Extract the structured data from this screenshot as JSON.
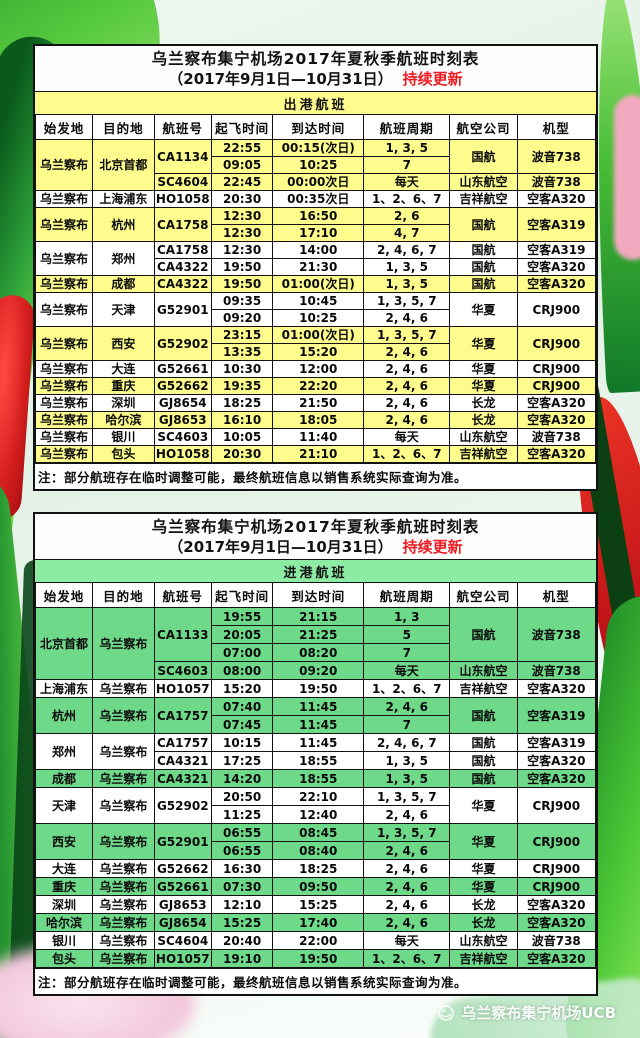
{
  "page": {
    "watermark_text": "乌兰察布集宁机场UCB"
  },
  "tables": [
    {
      "id": "departures",
      "title_line1": "乌兰察布集宁机场2017年夏秋季航班时刻表",
      "title_line2": "（2017年9月1日—10月31日）",
      "title_badge": "持续更新",
      "section": "出港航班",
      "columns": [
        "始发地",
        "目的地",
        "航班号",
        "起飞时间",
        "到达时间",
        "航班周期",
        "航空公司",
        "机型"
      ],
      "note": "注：部分航班存在临时调整可能，最终航班信息以销售系统实际查询为准。",
      "colors": {
        "row": "#fdfc8d",
        "band": "#fdfc8d",
        "badge": "#ee1b24"
      },
      "groups": [
        {
          "origin": "乌兰察布",
          "dest": "北京首都",
          "flights": [
            {
              "no": "CA1134",
              "airline": "国航",
              "aircraft": "波音738",
              "slots": [
                {
                  "dep": "22:55",
                  "arr": "00:15(次日)",
                  "days": "1, 3, 5"
                },
                {
                  "dep": "09:05",
                  "arr": "10:25",
                  "days": "7"
                }
              ]
            },
            {
              "no": "SC4604",
              "airline": "山东航空",
              "aircraft": "波音738",
              "slots": [
                {
                  "dep": "22:45",
                  "arr": "00:00次日",
                  "days": "每天"
                }
              ]
            }
          ]
        },
        {
          "origin": "乌兰察布",
          "dest": "上海浦东",
          "flights": [
            {
              "no": "HO1058",
              "airline": "吉祥航空",
              "aircraft": "空客A320",
              "slots": [
                {
                  "dep": "20:30",
                  "arr": "00:35次日",
                  "days": "1、2、6、7"
                }
              ]
            }
          ]
        },
        {
          "origin": "乌兰察布",
          "dest": "杭州",
          "flights": [
            {
              "no": "CA1758",
              "airline": "国航",
              "aircraft": "空客A319",
              "slots": [
                {
                  "dep": "12:30",
                  "arr": "16:50",
                  "days": "2, 6"
                },
                {
                  "dep": "12:30",
                  "arr": "17:10",
                  "days": "4, 7"
                }
              ]
            }
          ]
        },
        {
          "origin": "乌兰察布",
          "dest": "郑州",
          "flights": [
            {
              "no": "CA1758",
              "airline": "国航",
              "aircraft": "空客A319",
              "slots": [
                {
                  "dep": "12:30",
                  "arr": "14:00",
                  "days": "2, 4, 6, 7"
                }
              ]
            },
            {
              "no": "CA4322",
              "airline": "国航",
              "aircraft": "空客A320",
              "slots": [
                {
                  "dep": "19:50",
                  "arr": "21:30",
                  "days": "1, 3, 5"
                }
              ]
            }
          ]
        },
        {
          "origin": "乌兰察布",
          "dest": "成都",
          "flights": [
            {
              "no": "CA4322",
              "airline": "国航",
              "aircraft": "空客A320",
              "slots": [
                {
                  "dep": "19:50",
                  "arr": "01:00(次日)",
                  "days": "1, 3, 5"
                }
              ]
            }
          ]
        },
        {
          "origin": "乌兰察布",
          "dest": "天津",
          "flights": [
            {
              "no": "G52901",
              "airline": "华夏",
              "aircraft": "CRJ900",
              "slots": [
                {
                  "dep": "09:35",
                  "arr": "10:45",
                  "days": "1, 3, 5, 7"
                },
                {
                  "dep": "09:20",
                  "arr": "10:25",
                  "days": "2, 4, 6"
                }
              ]
            }
          ]
        },
        {
          "origin": "乌兰察布",
          "dest": "西安",
          "flights": [
            {
              "no": "G52902",
              "airline": "华夏",
              "aircraft": "CRJ900",
              "slots": [
                {
                  "dep": "23:15",
                  "arr": "01:00(次日)",
                  "days": "1, 3, 5, 7"
                },
                {
                  "dep": "13:35",
                  "arr": "15:20",
                  "days": "2, 4, 6"
                }
              ]
            }
          ]
        },
        {
          "origin": "乌兰察布",
          "dest": "大连",
          "flights": [
            {
              "no": "G52661",
              "airline": "华夏",
              "aircraft": "CRJ900",
              "slots": [
                {
                  "dep": "10:30",
                  "arr": "12:00",
                  "days": "2, 4, 6"
                }
              ]
            }
          ]
        },
        {
          "origin": "乌兰察布",
          "dest": "重庆",
          "flights": [
            {
              "no": "G52662",
              "airline": "华夏",
              "aircraft": "CRJ900",
              "slots": [
                {
                  "dep": "19:35",
                  "arr": "22:20",
                  "days": "2, 4, 6"
                }
              ]
            }
          ]
        },
        {
          "origin": "乌兰察布",
          "dest": "深圳",
          "flights": [
            {
              "no": "GJ8654",
              "airline": "长龙",
              "aircraft": "空客A320",
              "slots": [
                {
                  "dep": "18:25",
                  "arr": "21:50",
                  "days": "2, 4, 6"
                }
              ]
            }
          ]
        },
        {
          "origin": "乌兰察布",
          "dest": "哈尔滨",
          "flights": [
            {
              "no": "GJ8653",
              "airline": "长龙",
              "aircraft": "空客A320",
              "slots": [
                {
                  "dep": "16:10",
                  "arr": "18:05",
                  "days": "2, 4, 6"
                }
              ]
            }
          ]
        },
        {
          "origin": "乌兰察布",
          "dest": "银川",
          "flights": [
            {
              "no": "SC4603",
              "airline": "山东航空",
              "aircraft": "波音738",
              "slots": [
                {
                  "dep": "10:05",
                  "arr": "11:40",
                  "days": "每天"
                }
              ]
            }
          ]
        },
        {
          "origin": "乌兰察布",
          "dest": "包头",
          "flights": [
            {
              "no": "HO1058",
              "airline": "吉祥航空",
              "aircraft": "空客A320",
              "slots": [
                {
                  "dep": "20:30",
                  "arr": "21:10",
                  "days": "1、2、6、7"
                }
              ]
            }
          ]
        }
      ]
    },
    {
      "id": "arrivals",
      "title_line1": "乌兰察布集宁机场2017年夏秋季航班时刻表",
      "title_line2": "（2017年9月1日—10月31日）",
      "title_badge": "持续更新",
      "section": "进港航班",
      "columns": [
        "始发地",
        "目的地",
        "航班号",
        "起飞时间",
        "到达时间",
        "航班周期",
        "航空公司",
        "机型"
      ],
      "note": "注：部分航班存在临时调整可能，最终航班信息以销售系统实际查询为准。",
      "colors": {
        "row": "#6fd98a",
        "band": "#8deca4",
        "badge": "#ee1b24"
      },
      "groups": [
        {
          "origin": "北京首都",
          "dest": "乌兰察布",
          "flights": [
            {
              "no": "CA1133",
              "airline": "国航",
              "aircraft": "波音738",
              "slots": [
                {
                  "dep": "19:55",
                  "arr": "21:15",
                  "days": "1, 3"
                },
                {
                  "dep": "20:05",
                  "arr": "21:25",
                  "days": "5"
                },
                {
                  "dep": "07:00",
                  "arr": "08:20",
                  "days": "7"
                }
              ]
            },
            {
              "no": "SC4603",
              "airline": "山东航空",
              "aircraft": "波音738",
              "slots": [
                {
                  "dep": "08:00",
                  "arr": "09:20",
                  "days": "每天"
                }
              ]
            }
          ]
        },
        {
          "origin": "上海浦东",
          "dest": "乌兰察布",
          "flights": [
            {
              "no": "HO1057",
              "airline": "吉祥航空",
              "aircraft": "空客A320",
              "slots": [
                {
                  "dep": "15:20",
                  "arr": "19:50",
                  "days": "1、2、6、7"
                }
              ]
            }
          ]
        },
        {
          "origin": "杭州",
          "dest": "乌兰察布",
          "flights": [
            {
              "no": "CA1757",
              "airline": "国航",
              "aircraft": "空客A319",
              "slots": [
                {
                  "dep": "07:40",
                  "arr": "11:45",
                  "days": "2, 4, 6"
                },
                {
                  "dep": "07:45",
                  "arr": "11:45",
                  "days": "7"
                }
              ]
            }
          ]
        },
        {
          "origin": "郑州",
          "dest": "乌兰察布",
          "flights": [
            {
              "no": "CA1757",
              "airline": "国航",
              "aircraft": "空客A319",
              "slots": [
                {
                  "dep": "10:15",
                  "arr": "11:45",
                  "days": "2, 4, 6, 7"
                }
              ]
            },
            {
              "no": "CA4321",
              "airline": "国航",
              "aircraft": "空客A320",
              "slots": [
                {
                  "dep": "17:25",
                  "arr": "18:55",
                  "days": "1, 3, 5"
                }
              ]
            }
          ]
        },
        {
          "origin": "成都",
          "dest": "乌兰察布",
          "flights": [
            {
              "no": "CA4321",
              "airline": "国航",
              "aircraft": "空客A320",
              "slots": [
                {
                  "dep": "14:20",
                  "arr": "18:55",
                  "days": "1, 3, 5"
                }
              ]
            }
          ]
        },
        {
          "origin": "天津",
          "dest": "乌兰察布",
          "flights": [
            {
              "no": "G52902",
              "airline": "华夏",
              "aircraft": "CRJ900",
              "slots": [
                {
                  "dep": "20:50",
                  "arr": "22:10",
                  "days": "1, 3, 5, 7"
                },
                {
                  "dep": "11:25",
                  "arr": "12:40",
                  "days": "2, 4, 6"
                }
              ]
            }
          ]
        },
        {
          "origin": "西安",
          "dest": "乌兰察布",
          "flights": [
            {
              "no": "G52901",
              "airline": "华夏",
              "aircraft": "CRJ900",
              "slots": [
                {
                  "dep": "06:55",
                  "arr": "08:45",
                  "days": "1, 3, 5, 7"
                },
                {
                  "dep": "06:55",
                  "arr": "08:40",
                  "days": "2, 4, 6"
                }
              ]
            }
          ]
        },
        {
          "origin": "大连",
          "dest": "乌兰察布",
          "flights": [
            {
              "no": "G52662",
              "airline": "华夏",
              "aircraft": "CRJ900",
              "slots": [
                {
                  "dep": "16:30",
                  "arr": "18:25",
                  "days": "2, 4, 6"
                }
              ]
            }
          ]
        },
        {
          "origin": "重庆",
          "dest": "乌兰察布",
          "flights": [
            {
              "no": "G52661",
              "airline": "华夏",
              "aircraft": "CRJ900",
              "slots": [
                {
                  "dep": "07:30",
                  "arr": "09:50",
                  "days": "2, 4, 6"
                }
              ]
            }
          ]
        },
        {
          "origin": "深圳",
          "dest": "乌兰察布",
          "flights": [
            {
              "no": "GJ8653",
              "airline": "长龙",
              "aircraft": "空客A320",
              "slots": [
                {
                  "dep": "12:10",
                  "arr": "15:25",
                  "days": "2, 4, 6"
                }
              ]
            }
          ]
        },
        {
          "origin": "哈尔滨",
          "dest": "乌兰察布",
          "flights": [
            {
              "no": "GJ8654",
              "airline": "长龙",
              "aircraft": "空客A320",
              "slots": [
                {
                  "dep": "15:25",
                  "arr": "17:40",
                  "days": "2, 4, 6"
                }
              ]
            }
          ]
        },
        {
          "origin": "银川",
          "dest": "乌兰察布",
          "flights": [
            {
              "no": "SC4604",
              "airline": "山东航空",
              "aircraft": "波音738",
              "slots": [
                {
                  "dep": "20:40",
                  "arr": "22:00",
                  "days": "每天"
                }
              ]
            }
          ]
        },
        {
          "origin": "包头",
          "dest": "乌兰察布",
          "flights": [
            {
              "no": "HO1057",
              "airline": "吉祥航空",
              "aircraft": "空客A320",
              "slots": [
                {
                  "dep": "19:10",
                  "arr": "19:50",
                  "days": "1、2、6、7"
                }
              ]
            }
          ]
        }
      ]
    }
  ]
}
